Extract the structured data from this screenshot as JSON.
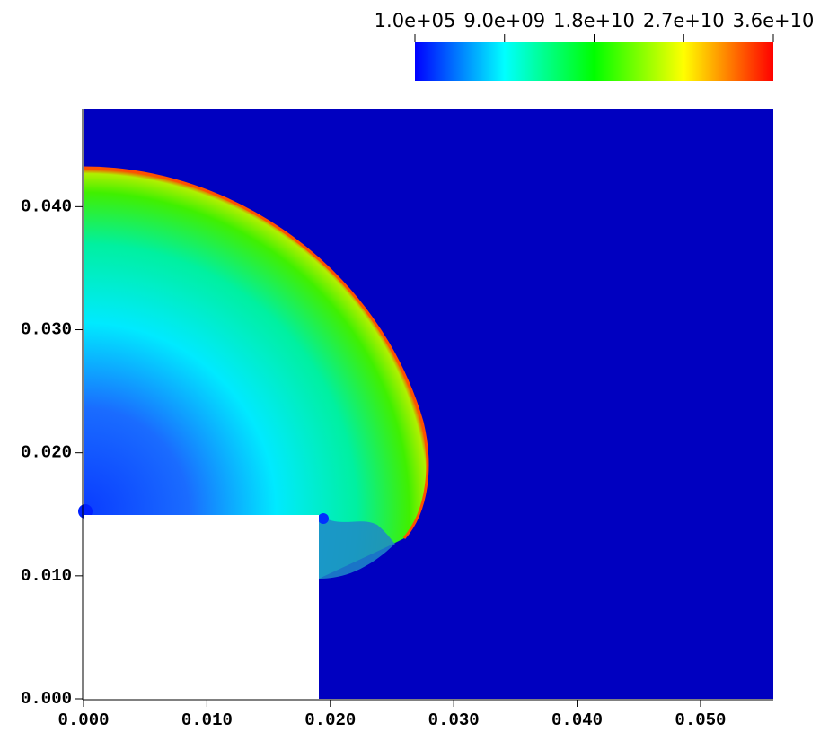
{
  "chart_data": {
    "type": "field",
    "xlim": [
      0,
      0.0559
    ],
    "ylim": [
      0,
      0.0479
    ],
    "xticks": [
      {
        "value": 0,
        "label": "0.000"
      },
      {
        "value": 0.01,
        "label": "0.010"
      },
      {
        "value": 0.02,
        "label": "0.020"
      },
      {
        "value": 0.03,
        "label": "0.030"
      },
      {
        "value": 0.04,
        "label": "0.040"
      },
      {
        "value": 0.05,
        "label": "0.050"
      }
    ],
    "yticks": [
      {
        "value": 0,
        "label": "0.000"
      },
      {
        "value": 0.01,
        "label": "0.010"
      },
      {
        "value": 0.02,
        "label": "0.020"
      },
      {
        "value": 0.03,
        "label": "0.030"
      },
      {
        "value": 0.04,
        "label": "0.040"
      }
    ],
    "colorbar": {
      "lim": [
        100000,
        36000000000
      ],
      "ticks": [
        {
          "value": 100000,
          "label": "1.0e+05"
        },
        {
          "value": 9000000000,
          "label": "9.0e+09"
        },
        {
          "value": 18000000000,
          "label": "1.8e+10"
        },
        {
          "value": 27000000000,
          "label": "2.7e+10"
        },
        {
          "value": 36000000000,
          "label": "3.6e+10"
        }
      ],
      "colors": [
        "#0000ff",
        "#00ffff",
        "#00ff00",
        "#ffff00",
        "#ff0000"
      ]
    }
  }
}
